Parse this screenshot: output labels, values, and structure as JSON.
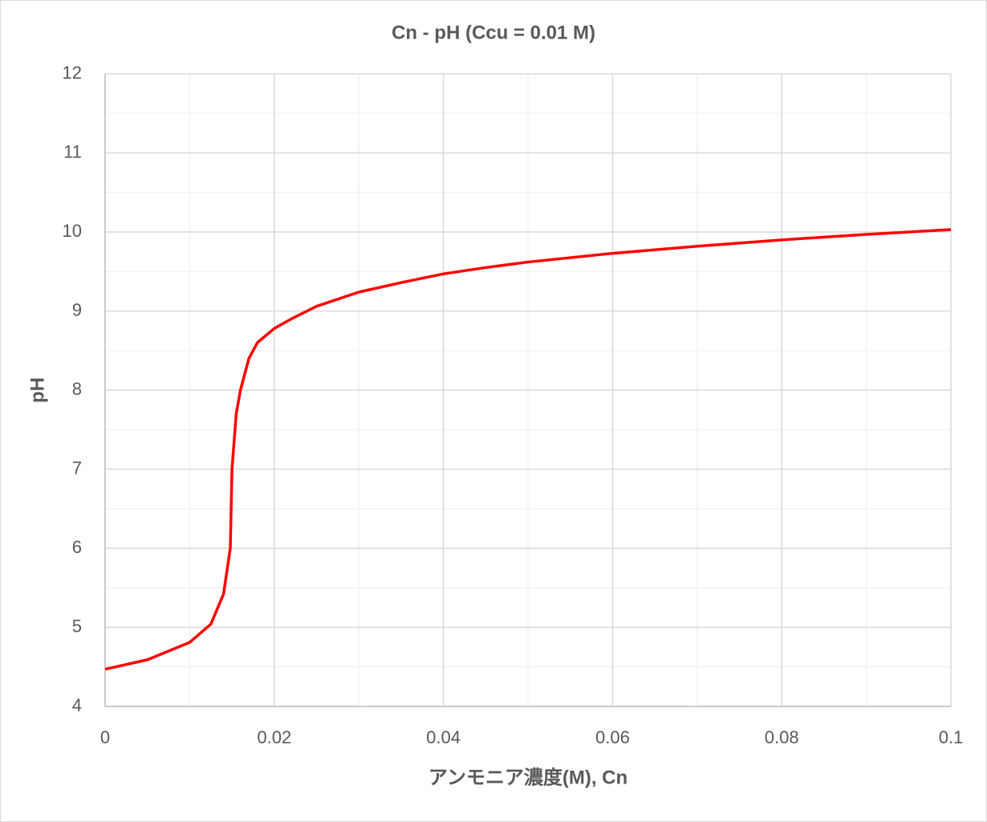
{
  "chart_data": {
    "type": "line",
    "title": "Cn - pH (Ccu = 0.01 M)",
    "x_label": "アンモニア濃度(M), Cn",
    "y_label": "pH",
    "x": [
      0,
      0.005,
      0.01,
      0.0125,
      0.014,
      0.0148,
      0.015,
      0.0155,
      0.016,
      0.017,
      0.018,
      0.02,
      0.022,
      0.025,
      0.03,
      0.035,
      0.04,
      0.045,
      0.05,
      0.06,
      0.07,
      0.08,
      0.09,
      0.1
    ],
    "series": [
      {
        "name": "pH",
        "color": "#ff0000",
        "values": [
          4.47,
          4.59,
          4.81,
          5.04,
          5.42,
          6.0,
          7.0,
          7.7,
          8.0,
          8.4,
          8.6,
          8.78,
          8.9,
          9.06,
          9.24,
          9.36,
          9.47,
          9.55,
          9.62,
          9.73,
          9.82,
          9.9,
          9.97,
          10.03
        ]
      }
    ],
    "xlim": [
      0,
      0.1
    ],
    "xticks": [
      0,
      0.02,
      0.04,
      0.06,
      0.08,
      0.1
    ],
    "ylim": [
      4,
      12
    ],
    "yticks": [
      4,
      5,
      6,
      7,
      8,
      9,
      10,
      11,
      12
    ],
    "grid": true,
    "minor_grid": true,
    "legend": false
  }
}
